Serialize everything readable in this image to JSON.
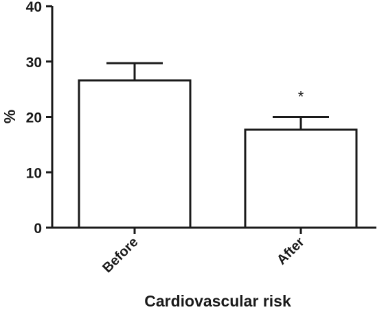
{
  "chart_data": {
    "type": "bar",
    "categories": [
      "Before",
      "After"
    ],
    "values": [
      26.6,
      17.7
    ],
    "error_upper": [
      29.7,
      20.0
    ],
    "annotations": [
      "",
      "*"
    ],
    "xlabel": "Cardiovascular risk",
    "ylabel": "%",
    "ylim": [
      0,
      40
    ],
    "yticks": [
      0,
      10,
      20,
      30,
      40
    ],
    "grid": false,
    "colors": {
      "bar_fill": "#ffffff",
      "stroke": "#1a1a1a"
    }
  }
}
